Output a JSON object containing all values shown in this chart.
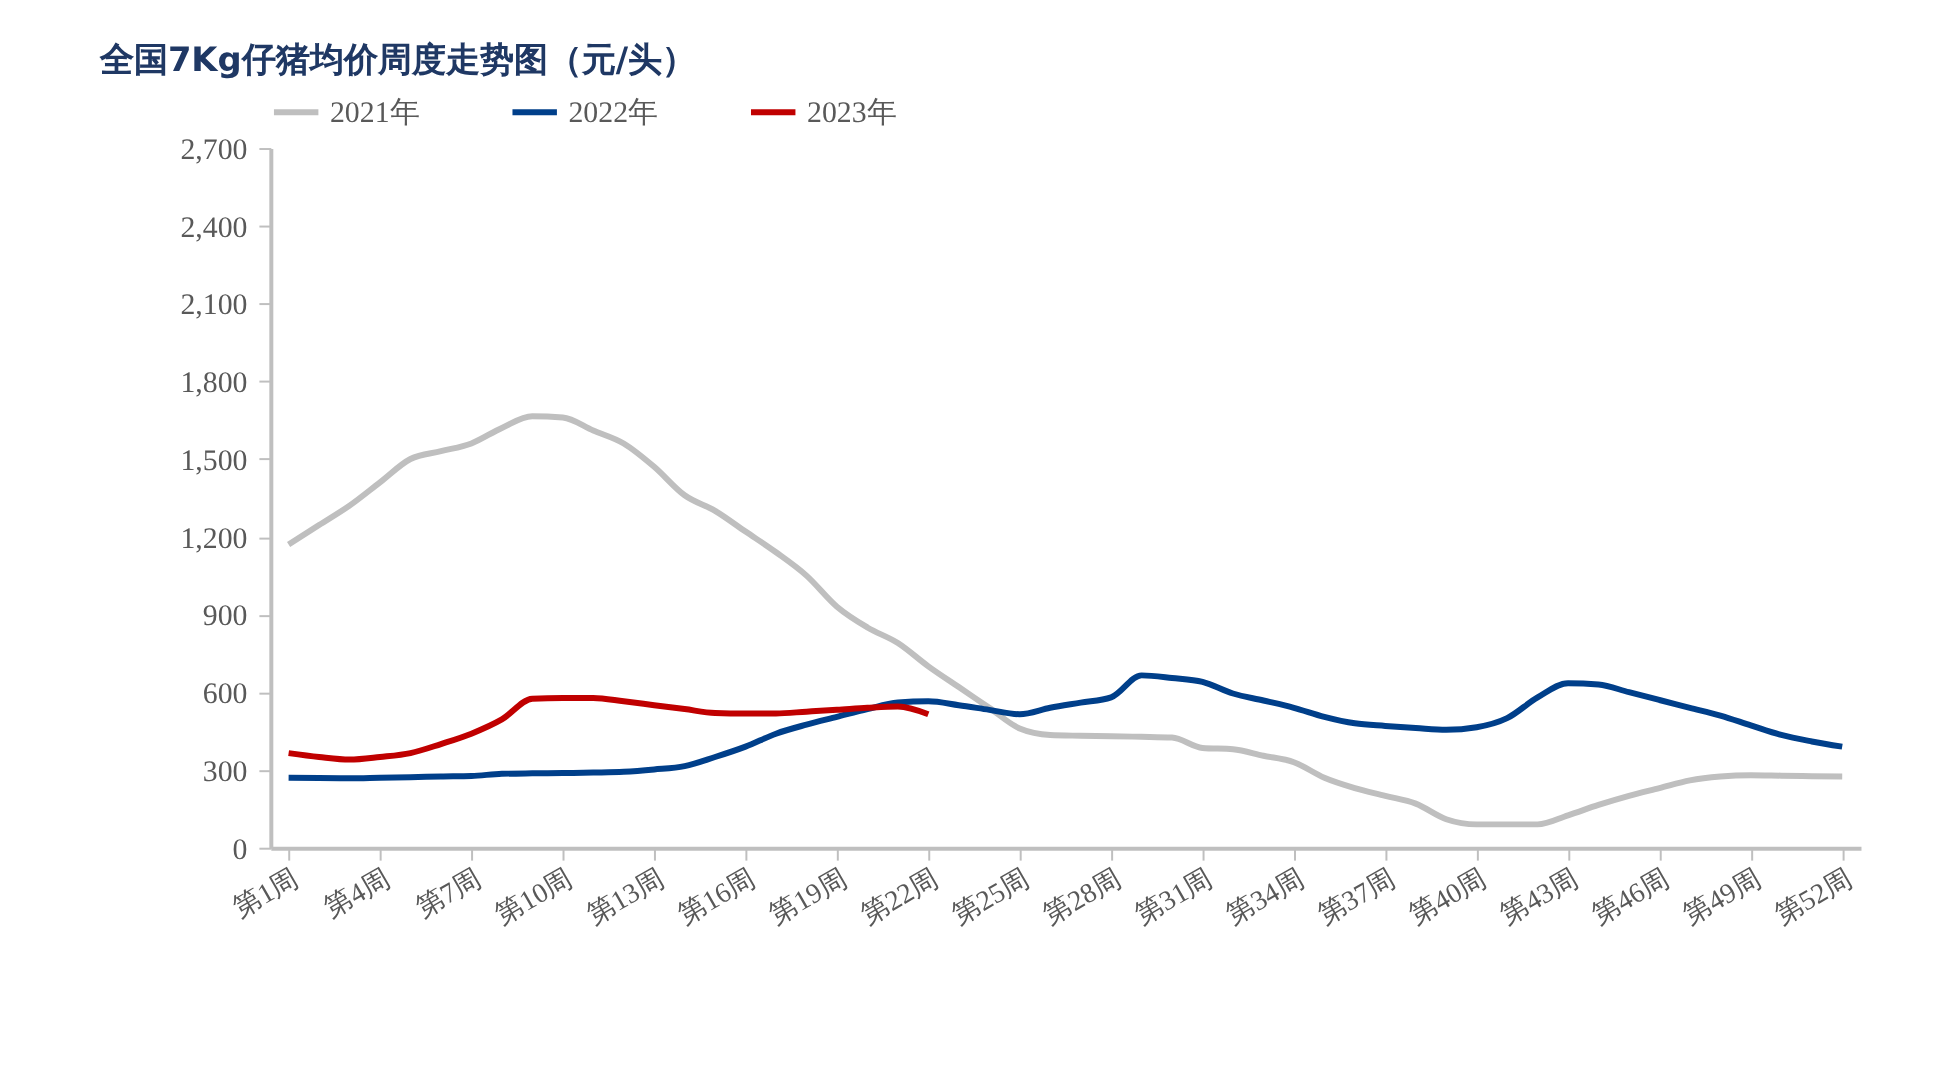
{
  "chart_data": {
    "type": "line",
    "title": "全国7Kg仔猪均价周度走势图（元/头）",
    "categories": [
      "第1周",
      null,
      null,
      "第4周",
      null,
      null,
      "第7周",
      null,
      null,
      "第10周",
      null,
      null,
      "第13周",
      null,
      null,
      "第16周",
      null,
      null,
      "第19周",
      null,
      null,
      "第22周",
      null,
      null,
      "第25周",
      null,
      null,
      "第28周",
      null,
      null,
      "第31周",
      null,
      null,
      "第34周",
      null,
      null,
      "第37周",
      null,
      null,
      "第40周",
      null,
      null,
      "第43周",
      null,
      null,
      "第46周",
      null,
      null,
      "第49周",
      null,
      null,
      "第52周"
    ],
    "ylim": [
      0,
      2700
    ],
    "yticks": [
      0,
      300,
      600,
      900,
      {
        "value": 1200,
        "label": "1,200"
      },
      {
        "value": 1500,
        "label": "1,500"
      },
      {
        "value": 1800,
        "label": "1,800"
      },
      {
        "value": 2100,
        "label": "2,100"
      },
      {
        "value": 2400,
        "label": "2,400"
      },
      {
        "value": 2700,
        "label": "2,700"
      }
    ],
    "grid": false,
    "legend": "top",
    "marker": "none",
    "line_style": "solid",
    "series": [
      {
        "name": "2021年",
        "color": "#bfbfbf",
        "values": [
          1170,
          1245,
          1320,
          1410,
          1500,
          1530,
          1560,
          1620,
          1665,
          1660,
          1610,
          1560,
          1470,
          1360,
          1300,
          1220,
          1140,
          1050,
          930,
          850,
          790,
          700,
          620,
          540,
          460,
          435,
          432,
          430,
          428,
          425,
          385,
          380,
          355,
          330,
          270,
          230,
          200,
          170,
          110,
          90,
          90,
          90,
          125,
          165,
          200,
          230,
          260,
          275,
          280,
          278,
          276,
          275
        ]
      },
      {
        "name": "2022年",
        "color": "#003f8a",
        "values": [
          270,
          269,
          268,
          270,
          272,
          275,
          277,
          285,
          287,
          288,
          290,
          293,
          302,
          315,
          350,
          390,
          440,
          475,
          505,
          535,
          560,
          565,
          550,
          532,
          515,
          540,
          560,
          580,
          665,
          655,
          640,
          595,
          568,
          540,
          505,
          480,
          470,
          462,
          455,
          465,
          500,
          580,
          635,
          630,
          600,
          570,
          540,
          510,
          472,
          435,
          410,
          390
        ]
      },
      {
        "name": "2023年",
        "color": "#c00000",
        "values": [
          365,
          350,
          340,
          350,
          365,
          400,
          440,
          495,
          575,
          578,
          578,
          565,
          550,
          535,
          520,
          518,
          518,
          525,
          532,
          540,
          545,
          515,
          null,
          null,
          null,
          null,
          null,
          null,
          null,
          null,
          null,
          null,
          null,
          null,
          null,
          null,
          null,
          null,
          null,
          null,
          null,
          null,
          null,
          null,
          null,
          null,
          null,
          null,
          null,
          null,
          null,
          null
        ]
      }
    ]
  }
}
